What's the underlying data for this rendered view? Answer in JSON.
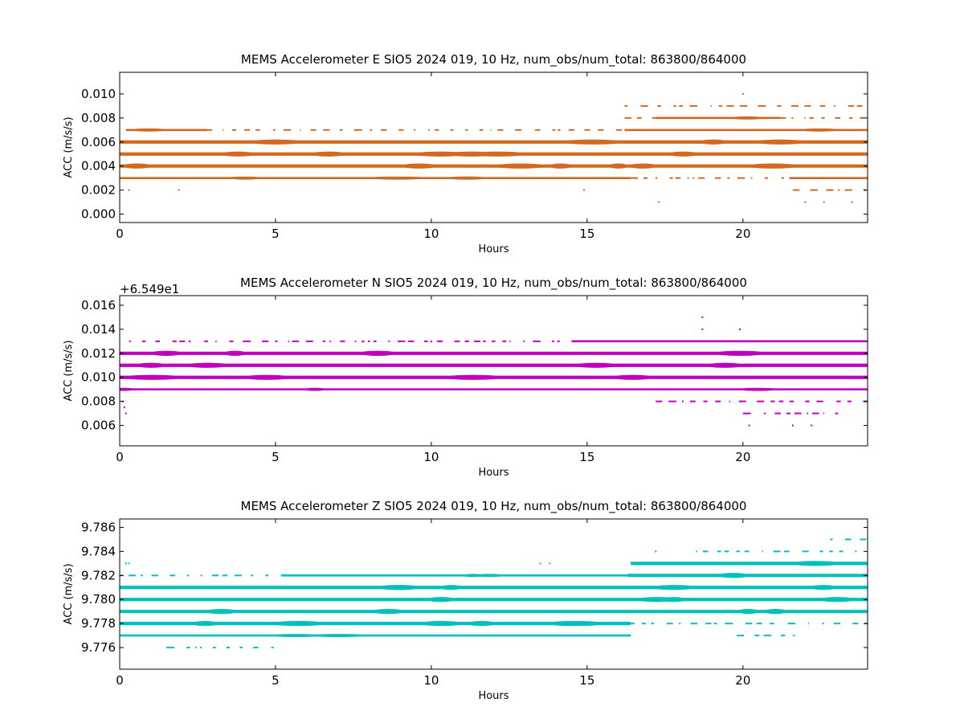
{
  "chart_data": [
    {
      "type": "scatter",
      "title": "MEMS Accelerometer E SIO5 2024 019, 10 Hz, num_obs/num_total: 863800/864000",
      "xlabel": "Hours",
      "ylabel": "ACC (m/s/s)",
      "xlim": [
        0,
        24
      ],
      "ylim": [
        -0.0007,
        0.0118
      ],
      "xticks": [
        0,
        5,
        10,
        15,
        20
      ],
      "xtick_labels": [
        "0",
        "5",
        "10",
        "15",
        "20"
      ],
      "yticks": [
        0.0,
        0.002,
        0.004,
        0.006,
        0.008,
        0.01
      ],
      "ytick_labels": [
        "0.000",
        "0.002",
        "0.004",
        "0.006",
        "0.008",
        "0.010"
      ],
      "color": "#d2691e",
      "bands": [
        {
          "y": 0.006,
          "segments": [
            [
              0,
              24
            ]
          ],
          "weight": "heavy"
        },
        {
          "y": 0.005,
          "segments": [
            [
              0,
              24
            ]
          ],
          "weight": "heavy"
        },
        {
          "y": 0.004,
          "segments": [
            [
              0,
              24
            ]
          ],
          "weight": "heavy"
        },
        {
          "y": 0.007,
          "segments": [
            [
              0.2,
              2.8
            ],
            [
              16.2,
              24
            ]
          ],
          "weight": "medium"
        },
        {
          "y": 0.007,
          "segments": [
            [
              2.8,
              16.2
            ]
          ],
          "weight": "sparse"
        },
        {
          "y": 0.003,
          "segments": [
            [
              0,
              16.4
            ],
            [
              21.5,
              24
            ]
          ],
          "weight": "medium"
        },
        {
          "y": 0.003,
          "segments": [
            [
              16.4,
              21.5
            ]
          ],
          "weight": "sparse"
        },
        {
          "y": 0.008,
          "segments": [
            [
              17.2,
              21.2
            ]
          ],
          "weight": "medium"
        },
        {
          "y": 0.008,
          "segments": [
            [
              16.2,
              17.2
            ],
            [
              21.2,
              24
            ]
          ],
          "weight": "sparse"
        },
        {
          "y": 0.009,
          "segments": [
            [
              16.2,
              24
            ]
          ],
          "weight": "sparse"
        },
        {
          "y": 0.002,
          "segments": [
            [
              21.6,
              24
            ]
          ],
          "weight": "sparse"
        }
      ],
      "points": [
        [
          0.3,
          0.002
        ],
        [
          1.9,
          0.002
        ],
        [
          14.9,
          0.002
        ],
        [
          17.3,
          0.001
        ],
        [
          20.0,
          0.01
        ],
        [
          22.0,
          0.001
        ],
        [
          22.6,
          0.001
        ],
        [
          23.5,
          0.001
        ],
        [
          16.6,
          0.003
        ]
      ]
    },
    {
      "type": "scatter",
      "title": "MEMS Accelerometer N SIO5 2024 019, 10 Hz, num_obs/num_total: 863800/864000",
      "xlabel": "Hours",
      "ylabel": "ACC (m/s/s)",
      "offset_text": "+6.549e1",
      "xlim": [
        0,
        24
      ],
      "ylim": [
        0.0043,
        0.0168
      ],
      "xticks": [
        0,
        5,
        10,
        15,
        20
      ],
      "xtick_labels": [
        "0",
        "5",
        "10",
        "15",
        "20"
      ],
      "yticks": [
        0.006,
        0.008,
        0.01,
        0.012,
        0.014,
        0.016
      ],
      "ytick_labels": [
        "0.006",
        "0.008",
        "0.010",
        "0.012",
        "0.014",
        "0.016"
      ],
      "color": "#bf00bf",
      "bands": [
        {
          "y": 0.012,
          "segments": [
            [
              0,
              24
            ]
          ],
          "weight": "heavy"
        },
        {
          "y": 0.011,
          "segments": [
            [
              0,
              24
            ]
          ],
          "weight": "heavy"
        },
        {
          "y": 0.01,
          "segments": [
            [
              0,
              24
            ]
          ],
          "weight": "heavy"
        },
        {
          "y": 0.009,
          "segments": [
            [
              0,
              24
            ]
          ],
          "weight": "medium"
        },
        {
          "y": 0.013,
          "segments": [
            [
              14.5,
              24
            ]
          ],
          "weight": "medium"
        },
        {
          "y": 0.013,
          "segments": [
            [
              0.3,
              14.5
            ]
          ],
          "weight": "sparse"
        },
        {
          "y": 0.008,
          "segments": [
            [
              17.2,
              24
            ]
          ],
          "weight": "sparse"
        },
        {
          "y": 0.007,
          "segments": [
            [
              20.0,
              23.2
            ]
          ],
          "weight": "sparse"
        }
      ],
      "points": [
        [
          0.1,
          0.008
        ],
        [
          0.2,
          0.007
        ],
        [
          18.7,
          0.015
        ],
        [
          18.7,
          0.014
        ],
        [
          19.9,
          0.014
        ],
        [
          20.2,
          0.006
        ],
        [
          21.6,
          0.006
        ],
        [
          22.2,
          0.006
        ],
        [
          0.15,
          0.0075
        ]
      ]
    },
    {
      "type": "scatter",
      "title": "MEMS Accelerometer Z SIO5 2024 019, 10 Hz, num_obs/num_total: 863800/864000",
      "xlabel": "Hours",
      "ylabel": "ACC (m/s/s)",
      "xlim": [
        0,
        24
      ],
      "ylim": [
        9.7742,
        9.7867
      ],
      "xticks": [
        0,
        5,
        10,
        15,
        20
      ],
      "xtick_labels": [
        "0",
        "5",
        "10",
        "15",
        "20"
      ],
      "yticks": [
        9.776,
        9.778,
        9.78,
        9.782,
        9.784,
        9.786
      ],
      "ytick_labels": [
        "9.776",
        "9.778",
        "9.780",
        "9.782",
        "9.784",
        "9.786"
      ],
      "color": "#00bfbf",
      "bands": [
        {
          "y": 9.78,
          "segments": [
            [
              0,
              24
            ]
          ],
          "weight": "heavy"
        },
        {
          "y": 9.781,
          "segments": [
            [
              0,
              24
            ]
          ],
          "weight": "heavy"
        },
        {
          "y": 9.779,
          "segments": [
            [
              0,
              24
            ]
          ],
          "weight": "heavy"
        },
        {
          "y": 9.782,
          "segments": [
            [
              16.3,
              24
            ]
          ],
          "weight": "heavy"
        },
        {
          "y": 9.782,
          "segments": [
            [
              5.2,
              16.3
            ]
          ],
          "weight": "medium"
        },
        {
          "y": 9.782,
          "segments": [
            [
              0,
              5.2
            ]
          ],
          "weight": "sparse"
        },
        {
          "y": 9.778,
          "segments": [
            [
              0,
              16.4
            ]
          ],
          "weight": "heavy"
        },
        {
          "y": 9.778,
          "segments": [
            [
              16.4,
              24
            ]
          ],
          "weight": "sparse"
        },
        {
          "y": 9.777,
          "segments": [
            [
              0,
              16.4
            ]
          ],
          "weight": "medium"
        },
        {
          "y": 9.777,
          "segments": [
            [
              19.8,
              21.8
            ]
          ],
          "weight": "sparse"
        },
        {
          "y": 9.783,
          "segments": [
            [
              16.4,
              24
            ]
          ],
          "weight": "heavy"
        },
        {
          "y": 9.784,
          "segments": [
            [
              18.5,
              24
            ]
          ],
          "weight": "sparse"
        },
        {
          "y": 9.785,
          "segments": [
            [
              22.8,
              24
            ]
          ],
          "weight": "sparse"
        },
        {
          "y": 9.776,
          "segments": [
            [
              1.5,
              5.2
            ]
          ],
          "weight": "sparse"
        }
      ],
      "points": [
        [
          0.2,
          9.783
        ],
        [
          0.3,
          9.783
        ],
        [
          13.5,
          9.783
        ],
        [
          13.8,
          9.783
        ],
        [
          17.2,
          9.784
        ],
        [
          0.05,
          9.781
        ]
      ]
    }
  ]
}
